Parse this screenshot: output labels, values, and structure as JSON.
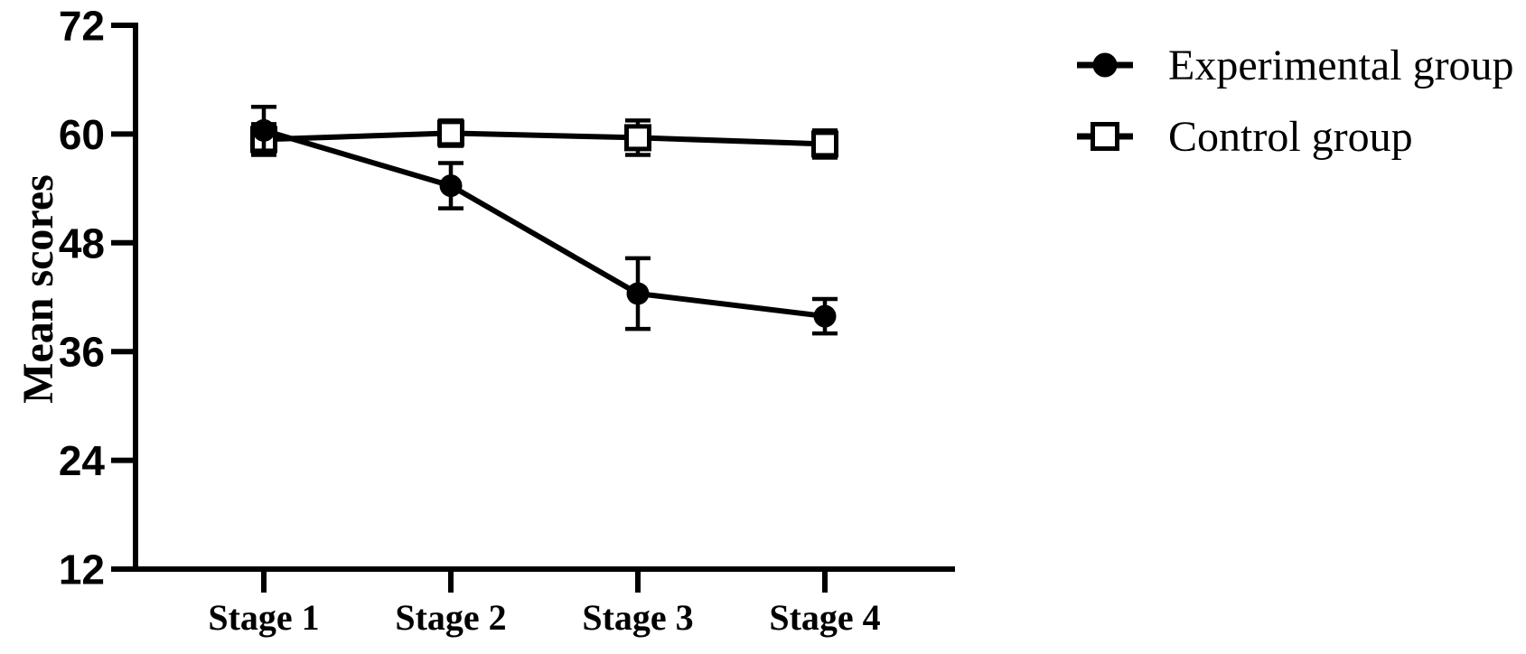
{
  "chart_data": {
    "type": "line",
    "title": "",
    "categories": [
      "Stage 1",
      "Stage 2",
      "Stage 3",
      "Stage 4"
    ],
    "series": [
      {
        "name": "Experimental group",
        "marker": "filled-circle",
        "values": [
          60.4,
          54.3,
          42.4,
          39.9
        ],
        "errors": [
          2.6,
          2.5,
          3.9,
          1.9
        ]
      },
      {
        "name": "Control group",
        "marker": "open-square",
        "values": [
          59.4,
          60.1,
          59.6,
          58.9
        ],
        "errors": [
          1.7,
          1.4,
          1.9,
          1.5
        ]
      }
    ],
    "xlabel": "",
    "ylabel": "Mean scores",
    "ylim": [
      12,
      72
    ],
    "yticks": [
      12,
      24,
      36,
      48,
      60,
      72
    ],
    "grid": false,
    "error_bars": true,
    "legend_position": "top-right",
    "colors": {
      "foreground": "#000000",
      "background": "#ffffff"
    }
  }
}
